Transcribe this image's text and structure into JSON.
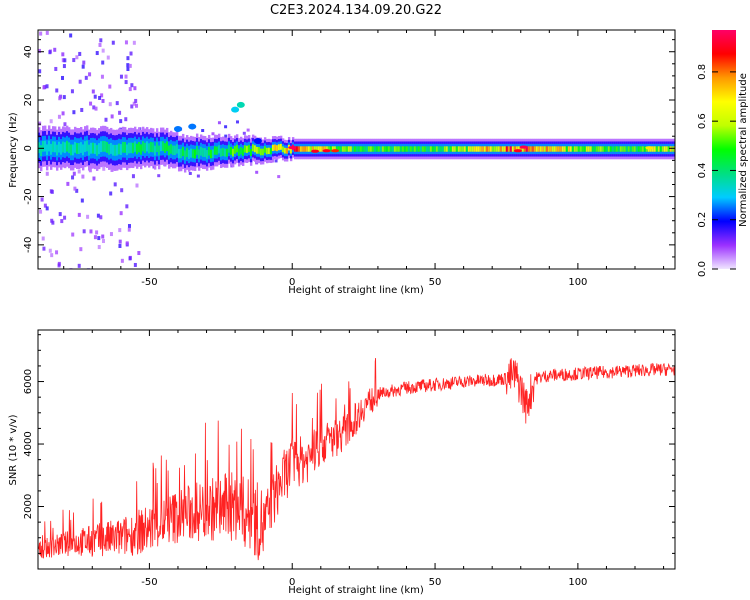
{
  "title": "C2E3.2024.134.09.20.G22",
  "chart_data": [
    {
      "type": "heatmap",
      "xlabel": "Height of straight line (km)",
      "ylabel": "Frequency (Hz)",
      "xlim": [
        -89,
        134
      ],
      "ylim": [
        -50,
        49
      ],
      "xticks": [
        -50,
        0,
        50,
        100
      ],
      "yticks": [
        -40,
        -20,
        0,
        20,
        40
      ],
      "colorbar": {
        "label": "Normalized spectral amplitude",
        "range": [
          0,
          0.97
        ],
        "ticks": [
          0.0,
          0.2,
          0.4,
          0.6,
          0.8
        ],
        "colormap": [
          "#f0e6ff",
          "#9b30ff",
          "#0000ff",
          "#00ccff",
          "#00e080",
          "#00ff00",
          "#c0ff00",
          "#ffff00",
          "#ff9900",
          "#ff0000",
          "#ff0066"
        ]
      },
      "ridge": [
        {
          "x": -89,
          "halfwidth_hz": 5,
          "peak": 0.35
        },
        {
          "x": -60,
          "halfwidth_hz": 5,
          "peak": 0.4
        },
        {
          "x": -30,
          "halfwidth_hz": 4,
          "peak": 0.45
        },
        {
          "x": -10,
          "halfwidth_hz": 3,
          "peak": 0.6
        },
        {
          "x": 0,
          "halfwidth_hz": 2.5,
          "peak": 0.9
        },
        {
          "x": 20,
          "halfwidth_hz": 2.5,
          "peak": 0.55
        },
        {
          "x": 50,
          "halfwidth_hz": 2.5,
          "peak": 0.5
        },
        {
          "x": 80,
          "halfwidth_hz": 2.5,
          "peak": 0.9
        },
        {
          "x": 110,
          "halfwidth_hz": 2.5,
          "peak": 0.5
        },
        {
          "x": 134,
          "halfwidth_hz": 2.5,
          "peak": 0.7
        }
      ],
      "hot_spots": [
        {
          "x": 0,
          "y": 0.3,
          "value": 0.95
        },
        {
          "x": 8,
          "y": -1.2,
          "value": 0.9
        },
        {
          "x": 12,
          "y": -1.0,
          "value": 0.9
        },
        {
          "x": 15,
          "y": -1.0,
          "value": 0.85
        },
        {
          "x": 79,
          "y": -1.0,
          "value": 0.9
        },
        {
          "x": 81,
          "y": 0.5,
          "value": 0.95
        },
        {
          "x": 125,
          "y": 0.2,
          "value": 0.7
        }
      ],
      "scatter_blobs": [
        {
          "x": -40,
          "y": 8,
          "value": 0.25
        },
        {
          "x": -35,
          "y": 9,
          "value": 0.25
        },
        {
          "x": -20,
          "y": 16,
          "value": 0.3
        },
        {
          "x": -18,
          "y": 18,
          "value": 0.35
        },
        {
          "x": -12,
          "y": 3,
          "value": 0.2
        }
      ]
    },
    {
      "type": "line",
      "xlabel": "Height of straight line (km)",
      "ylabel": "SNR (10 * v/v)",
      "xlim": [
        -89,
        134
      ],
      "ylim": [
        0,
        7650
      ],
      "xticks": [
        -50,
        0,
        50,
        100
      ],
      "yticks": [
        2000,
        4000,
        6000
      ],
      "line_color": "#ff2222",
      "series": [
        {
          "x": [
            -89,
            -80,
            -70,
            -60,
            -50,
            -40,
            -30,
            -20,
            -10,
            -5,
            0,
            5,
            10,
            15,
            20,
            25,
            30,
            35,
            40,
            50,
            60,
            70,
            75,
            78,
            80,
            82,
            85,
            90,
            100,
            110,
            120,
            134
          ],
          "y": [
            600,
            800,
            900,
            1000,
            1300,
            1700,
            1900,
            2000,
            1400,
            2600,
            3400,
            3500,
            4000,
            4200,
            4500,
            5200,
            5600,
            5700,
            5800,
            5900,
            6000,
            6050,
            6100,
            6200,
            5800,
            5200,
            6100,
            6200,
            6250,
            6300,
            6350,
            6400
          ]
        }
      ]
    }
  ]
}
